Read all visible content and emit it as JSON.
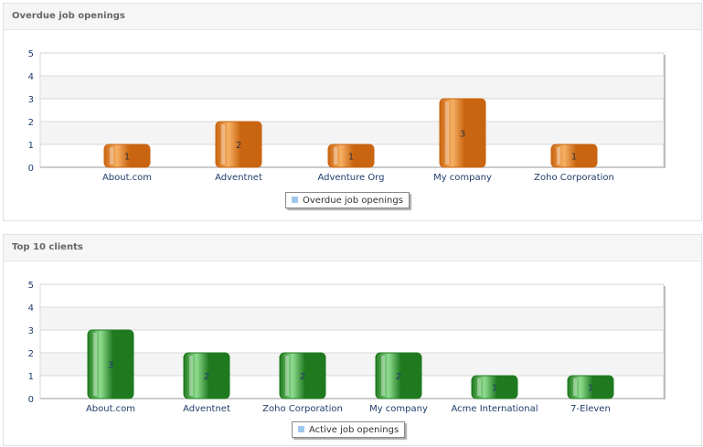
{
  "panels": [
    {
      "title": "Overdue job openings",
      "legend": "Overdue job openings",
      "theme": "orange",
      "chart_data": {
        "type": "bar",
        "categories": [
          "About.com",
          "Adventnet",
          "Adventure Org",
          "My company",
          "Zoho Corporation"
        ],
        "values": [
          1,
          2,
          1,
          3,
          1
        ],
        "series": [
          {
            "name": "Overdue job openings",
            "values": [
              1,
              2,
              1,
              3,
              1
            ]
          }
        ],
        "ylim": [
          0,
          5
        ],
        "yticks": [
          "0",
          "1",
          "2",
          "3",
          "4",
          "5"
        ],
        "grid": true,
        "legend_position": "bottom-center"
      }
    },
    {
      "title": "Top 10 clients",
      "legend": "Active job openings",
      "theme": "green",
      "chart_data": {
        "type": "bar",
        "categories": [
          "About.com",
          "Adventnet",
          "Zoho Corporation",
          "My company",
          "Acme International",
          "7-Eleven"
        ],
        "values": [
          3,
          2,
          2,
          2,
          1,
          1
        ],
        "series": [
          {
            "name": "Active job openings",
            "values": [
              3,
              2,
              2,
              2,
              1,
              1
            ]
          }
        ],
        "ylim": [
          0,
          5
        ],
        "yticks": [
          "0",
          "1",
          "2",
          "3",
          "4",
          "5"
        ],
        "grid": true,
        "legend_position": "bottom-center"
      }
    }
  ],
  "colors": {
    "orange_light": "#f6b064",
    "orange_dark": "#c96410",
    "green_light": "#8fdc8f",
    "green_dark": "#1f7a1f",
    "legend_swatch": "#9fc7ee",
    "axis_text": "#1f3d6b"
  }
}
